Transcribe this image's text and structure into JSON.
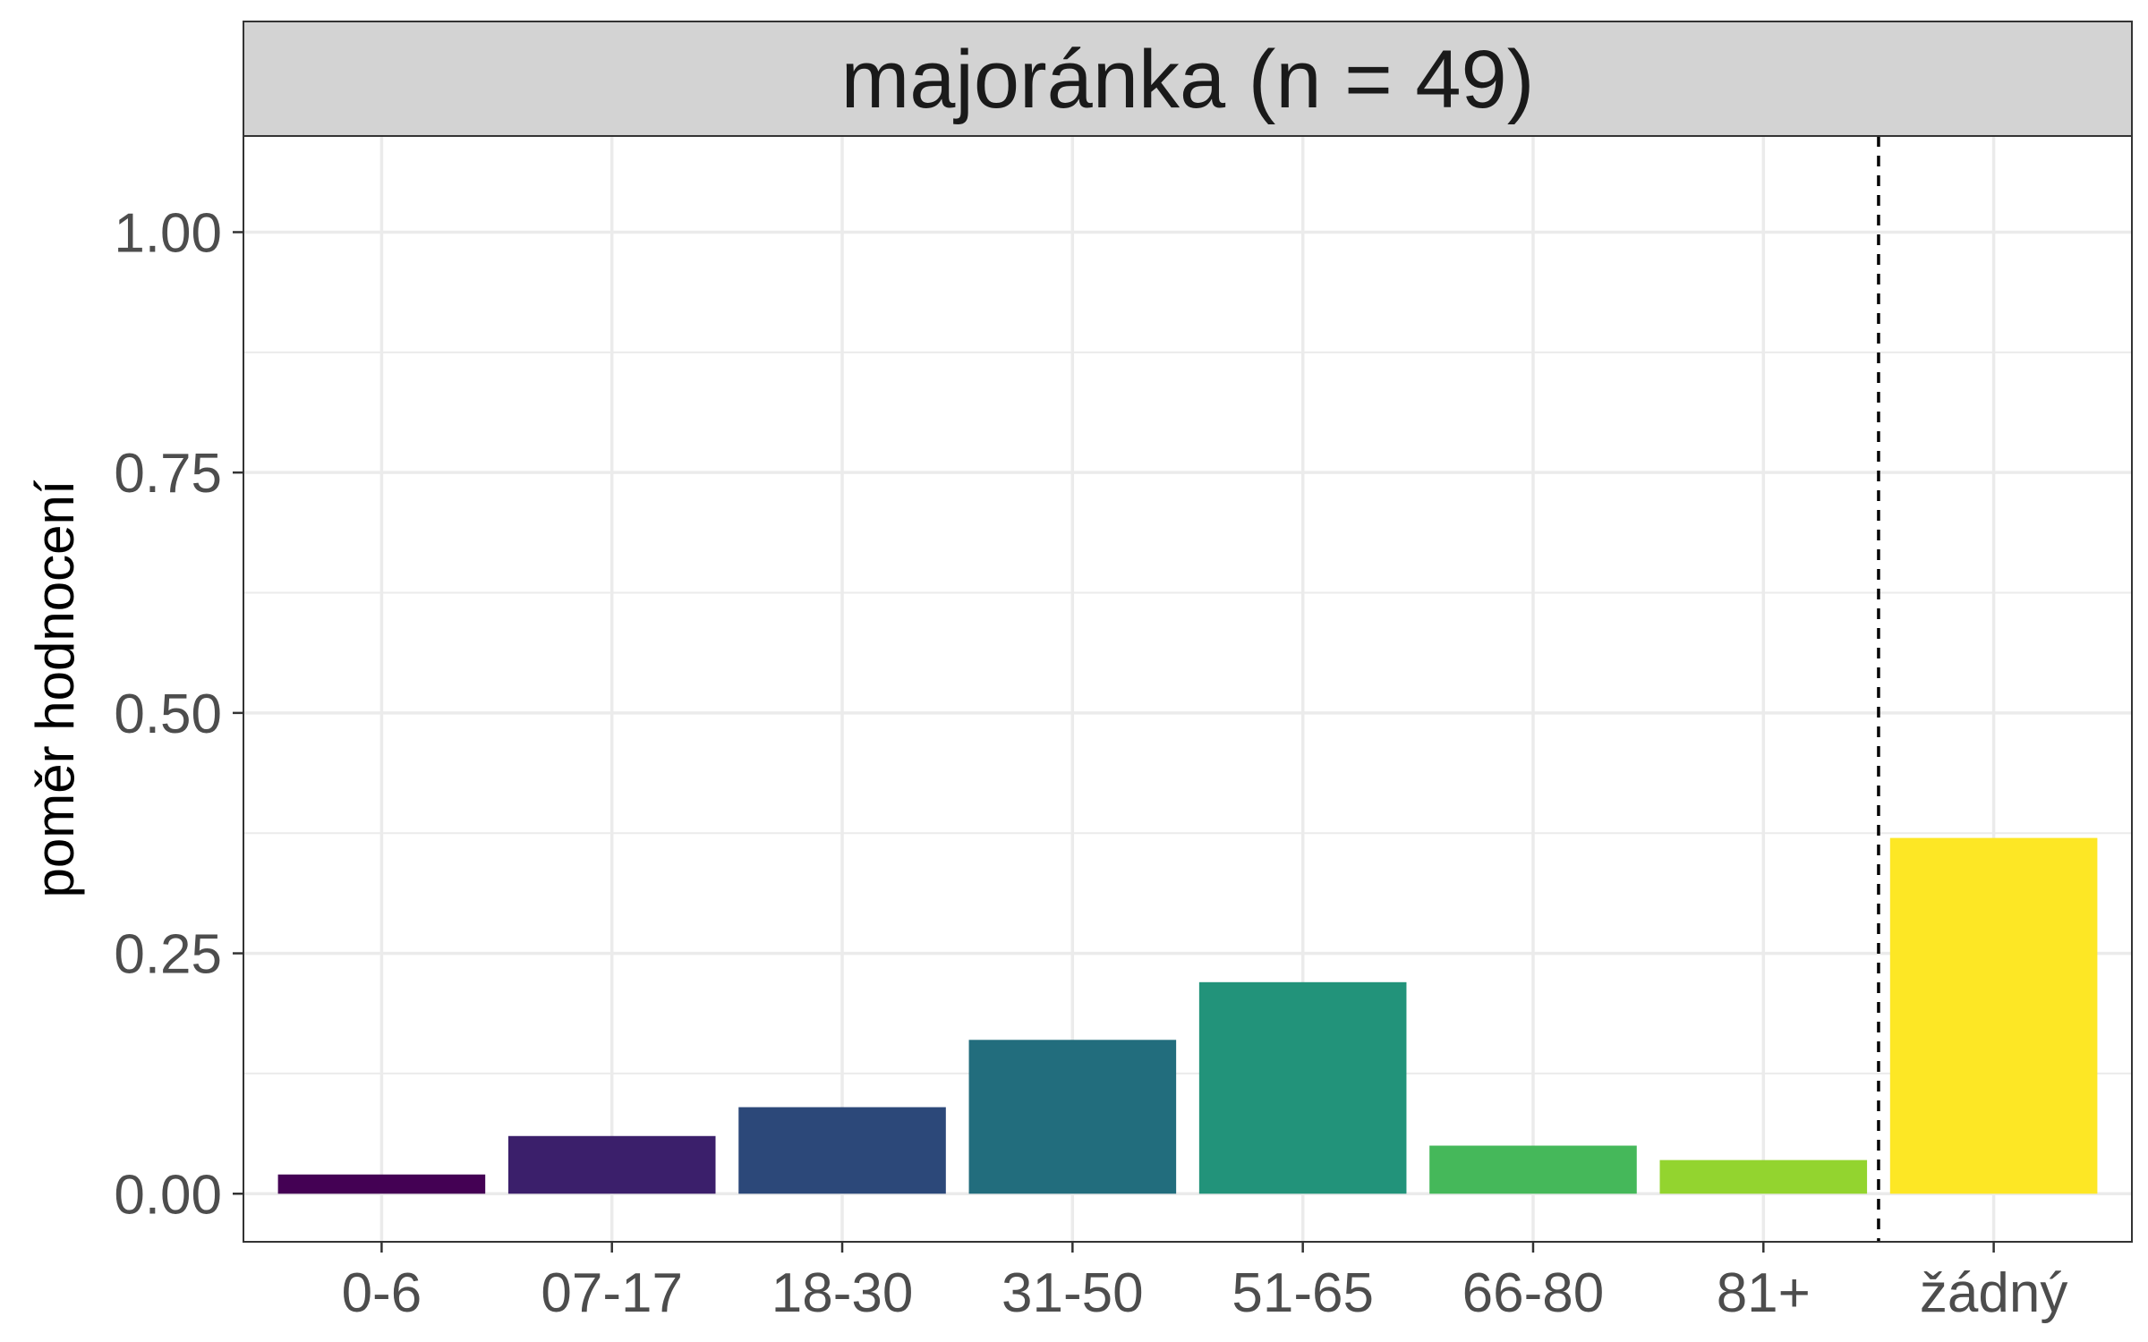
{
  "chart_data": {
    "type": "bar",
    "title": "majoránka (n = 49)",
    "xlabel": "",
    "ylabel": "poměr hodnocení",
    "categories": [
      "0-6",
      "07-17",
      "18-30",
      "31-50",
      "51-65",
      "66-80",
      "81+",
      "žádný"
    ],
    "values": [
      0.02,
      0.06,
      0.09,
      0.16,
      0.22,
      0.05,
      0.035,
      0.37
    ],
    "colors": [
      "#440154",
      "#3b1f6b",
      "#2c4879",
      "#226d7d",
      "#22937a",
      "#45b85a",
      "#93d42f",
      "#fde725"
    ],
    "ylim": [
      -0.05,
      1.1
    ],
    "yticks": [
      0.0,
      0.25,
      0.5,
      0.75,
      1.0
    ],
    "ytick_labels": [
      "0.00",
      "0.25",
      "0.50",
      "0.75",
      "1.00"
    ],
    "separator_after_category": "81+",
    "grid": true,
    "legend": "none"
  }
}
